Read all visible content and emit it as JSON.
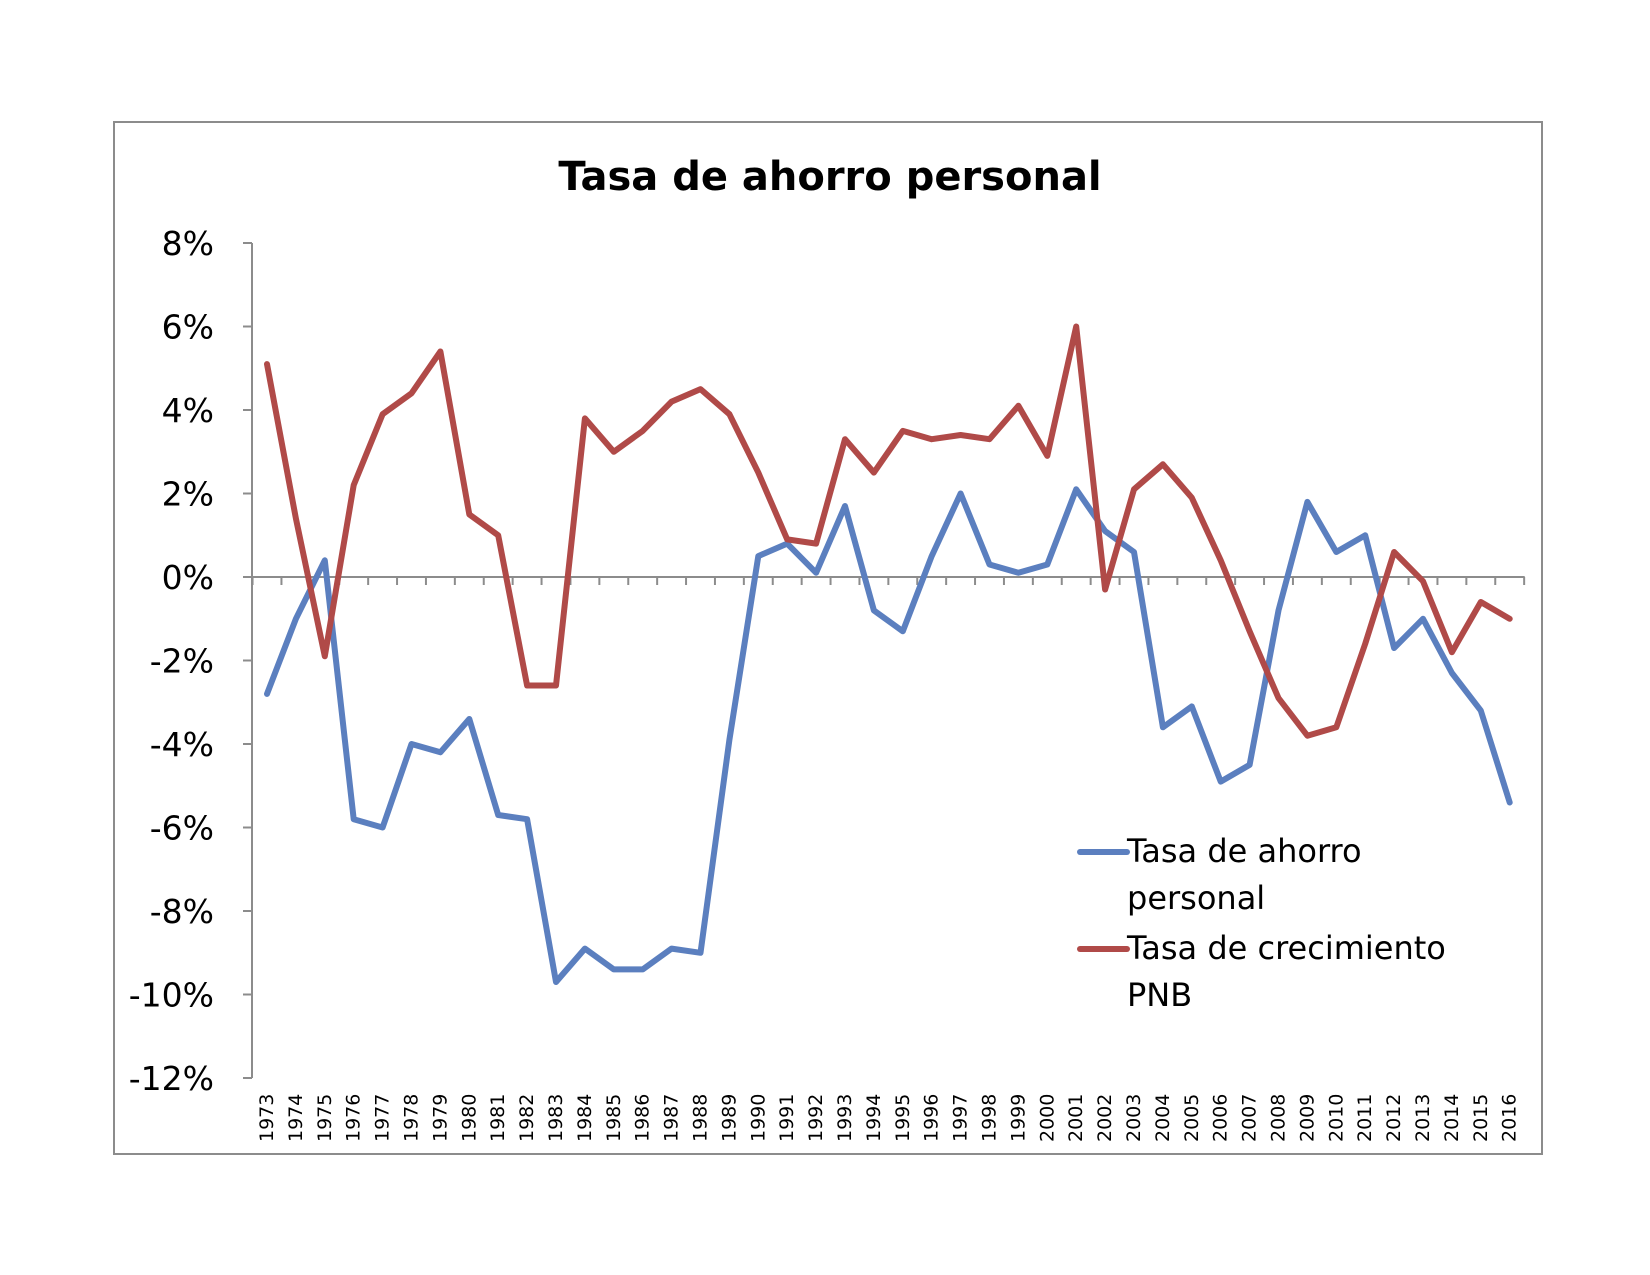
{
  "chart_data": {
    "type": "line",
    "title": "Tasa de ahorro personal",
    "xlabel": "",
    "ylabel": "",
    "ylim": [
      -12,
      8
    ],
    "ytick_step": 2,
    "ytick_suffix": "%",
    "grid": false,
    "legend_position": "bottom-right",
    "x": [
      "1973",
      "1974",
      "1975",
      "1976",
      "1977",
      "1978",
      "1979",
      "1980",
      "1981",
      "1982",
      "1983",
      "1984",
      "1985",
      "1986",
      "1987",
      "1988",
      "1989",
      "1990",
      "1991",
      "1992",
      "1993",
      "1994",
      "1995",
      "1996",
      "1997",
      "1998",
      "1999",
      "2000",
      "2001",
      "2002",
      "2003",
      "2004",
      "2005",
      "2006",
      "2007",
      "2008",
      "2009",
      "2010",
      "2011",
      "2012",
      "2013",
      "2014",
      "2015",
      "2016"
    ],
    "series": [
      {
        "name": "Tasa de ahorro personal",
        "color": "#5b7fbf",
        "values": [
          -2.8,
          -1.0,
          0.4,
          -5.8,
          -6.0,
          -4.0,
          -4.2,
          -3.4,
          -5.7,
          -5.8,
          -9.7,
          -8.9,
          -9.4,
          -9.4,
          -8.9,
          -9.0,
          -3.9,
          0.5,
          0.8,
          0.1,
          1.7,
          -0.8,
          -1.3,
          0.5,
          2.0,
          0.3,
          0.1,
          0.3,
          2.1,
          1.1,
          0.6,
          -3.6,
          -3.1,
          -4.9,
          -4.5,
          -0.8,
          1.8,
          0.6,
          1.0,
          -1.7,
          -1.0,
          -2.3,
          -3.2,
          -5.4
        ]
      },
      {
        "name": "Tasa de crecimiento PNB",
        "color": "#b04a48",
        "values": [
          5.1,
          1.4,
          -1.9,
          2.2,
          3.9,
          4.4,
          5.4,
          1.5,
          1.0,
          -2.6,
          -2.6,
          3.8,
          3.0,
          3.5,
          4.2,
          4.5,
          3.9,
          2.5,
          0.9,
          0.8,
          3.3,
          2.5,
          3.5,
          3.3,
          3.4,
          3.3,
          4.1,
          2.9,
          6.0,
          -0.3,
          2.1,
          2.7,
          1.9,
          0.4,
          -1.3,
          -2.9,
          -3.8,
          -3.6,
          -1.6,
          0.6,
          -0.1,
          -1.8,
          -0.6,
          -1.0
        ]
      }
    ]
  }
}
